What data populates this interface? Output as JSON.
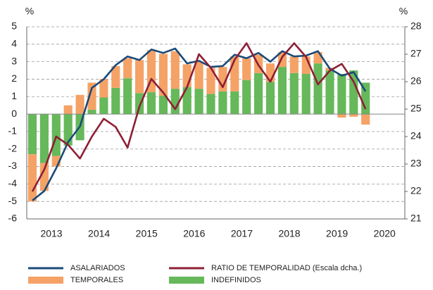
{
  "chart_data": {
    "type": "bar",
    "y_unit": "%",
    "y2_unit": "%",
    "categories": [
      null,
      "2013",
      null,
      null,
      null,
      "2014",
      null,
      null,
      null,
      "2015",
      null,
      null,
      null,
      "2016",
      null,
      null,
      null,
      "2017",
      null,
      null,
      null,
      "2018",
      null,
      null,
      null,
      "2019",
      null,
      null,
      null,
      "2020"
    ],
    "series": [
      {
        "name": "INDEFINIDOS",
        "type": "bar",
        "color": "#66b85a",
        "values": [
          -2.3,
          -2.8,
          -2.4,
          -1.8,
          -1.5,
          0.25,
          0.95,
          1.5,
          2.05,
          1.2,
          1.25,
          1.05,
          1.45,
          1.55,
          1.45,
          1.15,
          1.3,
          1.3,
          1.95,
          2.35,
          1.85,
          2.7,
          2.35,
          2.3,
          2.9,
          2.5,
          2.3,
          2.5,
          1.8,
          null
        ]
      },
      {
        "name": "TEMPORALES",
        "type": "bar",
        "color": "#f5a266",
        "values": [
          -2.7,
          -1.6,
          -0.6,
          0.5,
          1.1,
          1.55,
          1.05,
          1.25,
          1.15,
          1.9,
          2.4,
          2.4,
          2.15,
          1.3,
          1.55,
          1.5,
          1.4,
          2.0,
          1.25,
          1.05,
          1.05,
          0.85,
          0.95,
          1.0,
          0.65,
          0.15,
          -0.2,
          -0.15,
          -0.6,
          null
        ]
      },
      {
        "name": "ASALARIADOS",
        "type": "line",
        "color": "#1b4a78",
        "values": [
          -4.95,
          -4.4,
          -3.1,
          -1.6,
          -0.7,
          1.5,
          2.0,
          2.8,
          3.3,
          3.1,
          3.7,
          3.5,
          3.75,
          2.9,
          3.05,
          2.7,
          2.75,
          3.4,
          3.2,
          3.5,
          3.0,
          3.6,
          3.3,
          3.35,
          3.6,
          2.6,
          2.2,
          2.4,
          1.3,
          null
        ]
      },
      {
        "name": "RATIO DE TEMPORALIDAD (Escala dcha.)",
        "type": "line",
        "axis": "y2",
        "color": "#8e1f35",
        "values": [
          22.0,
          22.8,
          24.0,
          23.7,
          23.2,
          24.0,
          24.65,
          24.35,
          23.6,
          25.1,
          26.1,
          25.6,
          25.0,
          25.8,
          27.0,
          26.5,
          25.8,
          26.8,
          27.4,
          26.6,
          26.0,
          26.9,
          27.4,
          26.9,
          25.9,
          26.4,
          26.65,
          26.0,
          25.0,
          null
        ]
      }
    ],
    "ylim": [
      -6,
      5
    ],
    "yticks": [
      -6,
      -5,
      -4,
      -3,
      -2,
      -1,
      0,
      1,
      2,
      3,
      4,
      5
    ],
    "y2lim": [
      21,
      28
    ],
    "y2ticks": [
      21,
      22,
      23,
      24,
      25,
      26,
      27,
      28
    ],
    "grid": true
  }
}
